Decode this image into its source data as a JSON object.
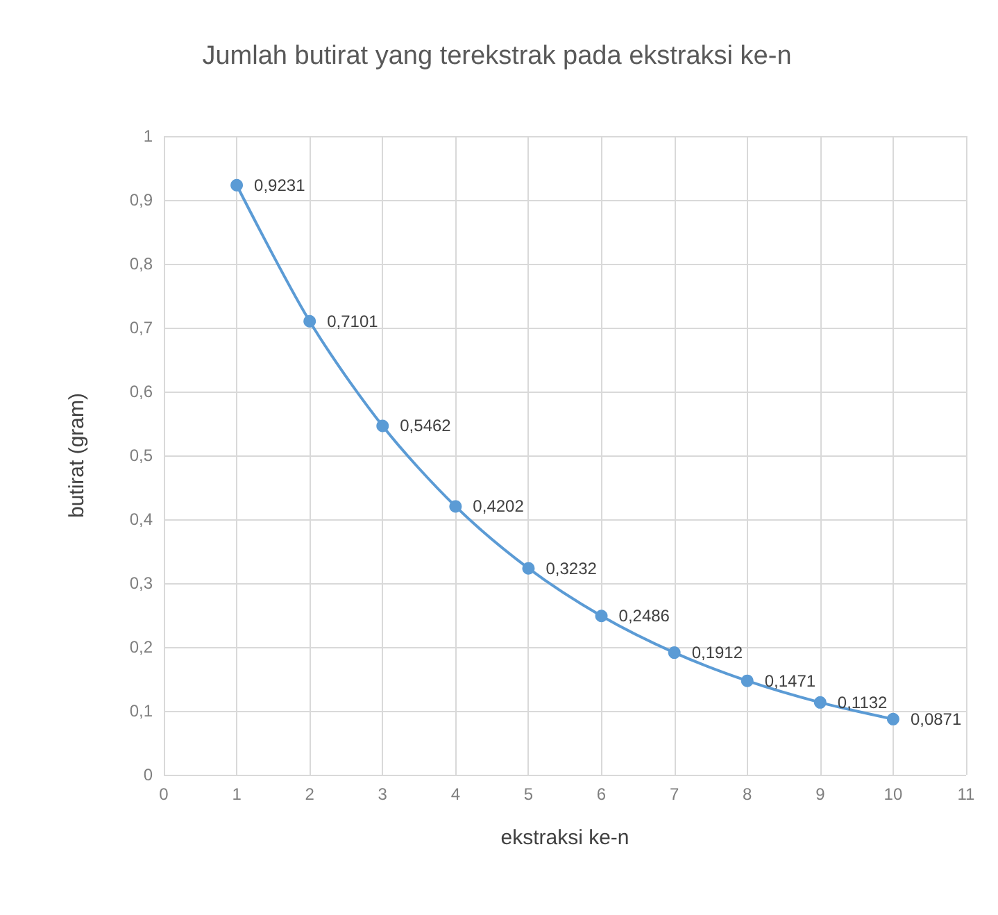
{
  "chart_data": {
    "type": "line",
    "title": "Jumlah butirat yang terekstrak pada ekstraksi ke-n",
    "xlabel": "ekstraksi ke-n",
    "ylabel": "butirat (gram)",
    "x": [
      1,
      2,
      3,
      4,
      5,
      6,
      7,
      8,
      9,
      10
    ],
    "series": [
      {
        "color": "#5b9bd5",
        "values": [
          0.9231,
          0.7101,
          0.5462,
          0.4202,
          0.3232,
          0.2486,
          0.1912,
          0.1471,
          0.1132,
          0.0871
        ],
        "value_labels": [
          "0,9231",
          "0,7101",
          "0,5462",
          "0,4202",
          "0,3232",
          "0,2486",
          "0,1912",
          "0,1471",
          "0,1132",
          "0,0871"
        ]
      }
    ],
    "xlim": [
      0,
      11
    ],
    "xticks": [
      0,
      1,
      2,
      3,
      4,
      5,
      6,
      7,
      8,
      9,
      10,
      11
    ],
    "ylim": [
      0,
      1
    ],
    "yticks": [
      0,
      {
        "value": 0.1,
        "label": "0,1"
      },
      {
        "value": 0.2,
        "label": "0,2"
      },
      {
        "value": 0.3,
        "label": "0,3"
      },
      {
        "value": 0.4,
        "label": "0,4"
      },
      {
        "value": 0.5,
        "label": "0,5"
      },
      {
        "value": 0.6,
        "label": "0,6"
      },
      {
        "value": 0.7,
        "label": "0,7"
      },
      {
        "value": 0.8,
        "label": "0,8"
      },
      {
        "value": 0.9,
        "label": "0,9"
      },
      1
    ],
    "grid": true,
    "marker": "circle",
    "line_style": "solid"
  }
}
